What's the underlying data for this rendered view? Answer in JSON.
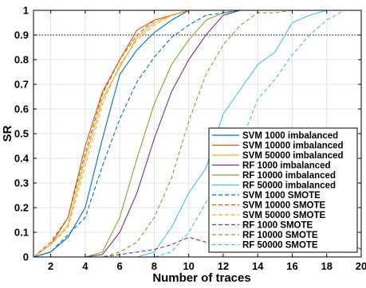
{
  "chart_data": {
    "type": "line",
    "title": "",
    "xlabel": "Number of traces",
    "ylabel": "SR",
    "xlim": [
      1,
      20
    ],
    "ylim": [
      0,
      1
    ],
    "xticks": [
      2,
      4,
      6,
      8,
      10,
      12,
      14,
      16,
      18,
      20
    ],
    "xtick_labels": [
      "2",
      "4",
      "6",
      "8",
      "10",
      "12",
      "14",
      "16",
      "18",
      "20"
    ],
    "yticks": [
      0,
      0.1,
      0.2,
      0.3,
      0.4,
      0.5,
      0.6,
      0.7,
      0.8,
      0.9,
      1
    ],
    "ytick_labels": [
      "0",
      "0.1",
      "0.2",
      "0.3",
      "0.4",
      "0.5",
      "0.6",
      "0.7",
      "0.8",
      "0.9",
      "1"
    ],
    "grid": true,
    "legend_position": "bottom-right",
    "reference_line": {
      "y": 0.9,
      "style": "dotted",
      "color": "#000000"
    },
    "x": [
      1,
      2,
      3,
      4,
      5,
      6,
      7,
      8,
      9,
      10,
      11,
      12,
      13,
      14,
      15,
      16,
      17,
      18,
      19,
      20
    ],
    "series": [
      {
        "name": "SVM 1000 imbalanced",
        "color": "#0072BD",
        "dash": "solid",
        "values": [
          0,
          0.02,
          0.08,
          0.2,
          0.48,
          0.74,
          0.84,
          0.91,
          0.96,
          1,
          1,
          1,
          1,
          1,
          1,
          1,
          1,
          1,
          1,
          1
        ]
      },
      {
        "name": "SVM 10000 imbalanced",
        "color": "#D95319",
        "dash": "solid",
        "values": [
          0,
          0.05,
          0.16,
          0.45,
          0.67,
          0.8,
          0.92,
          0.96,
          0.98,
          1,
          1,
          1,
          1,
          1,
          1,
          1,
          1,
          1,
          1,
          1
        ]
      },
      {
        "name": "SVM 50000 imbalanced",
        "color": "#EDB120",
        "dash": "solid",
        "values": [
          0,
          0.05,
          0.13,
          0.4,
          0.64,
          0.77,
          0.89,
          0.95,
          0.98,
          1,
          1,
          1,
          1,
          1,
          1,
          1,
          1,
          1,
          1,
          1
        ]
      },
      {
        "name": "RF 1000 imbalanced",
        "color": "#7E2F8E",
        "dash": "solid",
        "values": [
          0,
          0,
          0,
          0,
          0.01,
          0.1,
          0.26,
          0.48,
          0.67,
          0.8,
          0.9,
          0.98,
          1,
          1,
          1,
          1,
          1,
          1,
          1,
          1
        ]
      },
      {
        "name": "RF 10000 imbalanced",
        "color": "#77AC30",
        "dash": "solid",
        "values": [
          0,
          0,
          0,
          0,
          0.02,
          0.16,
          0.4,
          0.62,
          0.78,
          0.88,
          0.96,
          0.99,
          1,
          1,
          1,
          1,
          1,
          1,
          1,
          1
        ]
      },
      {
        "name": "RF 50000 imbalanced",
        "color": "#4DBEEE",
        "dash": "solid",
        "values": [
          0,
          0,
          0,
          0,
          0,
          0,
          0,
          0.02,
          0.12,
          0.26,
          0.36,
          0.58,
          0.68,
          0.78,
          0.83,
          0.95,
          0.98,
          1,
          1,
          1
        ]
      },
      {
        "name": "SVM 1000 SMOTE",
        "color": "#0072BD",
        "dash": "dashed",
        "values": [
          0,
          0.02,
          0.09,
          0.16,
          0.37,
          0.56,
          0.71,
          0.81,
          0.89,
          0.94,
          0.98,
          0.99,
          1,
          1,
          1,
          1,
          1,
          1,
          1,
          1
        ]
      },
      {
        "name": "SVM 10000 SMOTE",
        "color": "#D95319",
        "dash": "dashed",
        "values": [
          0,
          0.06,
          0.16,
          0.42,
          0.66,
          0.8,
          0.9,
          0.96,
          0.98,
          1,
          1,
          1,
          1,
          1,
          1,
          1,
          1,
          1,
          1,
          1
        ]
      },
      {
        "name": "SVM 50000 SMOTE",
        "color": "#EDB120",
        "dash": "dashed",
        "values": [
          0,
          0.05,
          0.12,
          0.37,
          0.62,
          0.78,
          0.88,
          0.94,
          0.98,
          1,
          1,
          1,
          1,
          1,
          1,
          1,
          1,
          1,
          1,
          1
        ]
      },
      {
        "name": "RF 1000 SMOTE",
        "color": "#7E2F8E",
        "dash": "dashed",
        "values": [
          0,
          0,
          0,
          0,
          0,
          0.01,
          0.02,
          0.03,
          0.05,
          0.08,
          0.06,
          0.07,
          0.05,
          0.05,
          0.06,
          0.06,
          0.06,
          0.08,
          0.07,
          0.03
        ]
      },
      {
        "name": "RF 10000 SMOTE",
        "color": "#77AC30",
        "dash": "dashed",
        "values": [
          0,
          0,
          0,
          0,
          0,
          0.02,
          0.06,
          0.16,
          0.32,
          0.55,
          0.74,
          0.86,
          0.94,
          0.99,
          0.99,
          1,
          1,
          1,
          1,
          1
        ]
      },
      {
        "name": "RF 50000 SMOTE",
        "color": "#4DBEEE",
        "dash": "dashed",
        "values": [
          0,
          0,
          0,
          0,
          0,
          0,
          0,
          0,
          0.02,
          0.1,
          0.22,
          0.35,
          0.46,
          0.64,
          0.72,
          0.82,
          0.9,
          0.96,
          1,
          1
        ]
      }
    ]
  }
}
